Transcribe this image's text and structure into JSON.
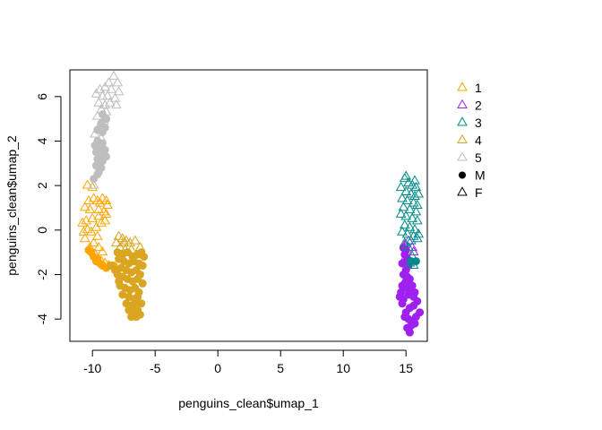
{
  "chart_data": {
    "type": "scatter",
    "xlabel": "penguins_clean$umap_1",
    "ylabel": "penguins_clean$umap_2",
    "xlim": [
      -11.8,
      16.7
    ],
    "ylim": [
      -5.0,
      7.2
    ],
    "x_ticks": [
      -10,
      -5,
      0,
      5,
      10,
      15
    ],
    "y_ticks": [
      -4,
      -2,
      0,
      2,
      4,
      6
    ],
    "grid": false,
    "legend_placement": "right",
    "legend": [
      {
        "label": "1",
        "kind": "color",
        "color": "#FFA500"
      },
      {
        "label": "2",
        "kind": "color",
        "color": "#A020F0"
      },
      {
        "label": "3",
        "kind": "color",
        "color": "#008B8B"
      },
      {
        "label": "4",
        "kind": "color",
        "color": "#DAA520"
      },
      {
        "label": "5",
        "kind": "color",
        "color": "#BEBEBE"
      },
      {
        "label": "M",
        "kind": "shape",
        "shape": "filled-circle"
      },
      {
        "label": "F",
        "kind": "shape",
        "shape": "open-triangle"
      }
    ],
    "series": [
      {
        "name": "1",
        "color": "#FFA500",
        "points": [
          [
            -10.4,
            2.0,
            "F"
          ],
          [
            -10.0,
            1.9,
            "F"
          ],
          [
            -9.9,
            1.4,
            "F"
          ],
          [
            -10.3,
            1.3,
            "F"
          ],
          [
            -10.6,
            1.0,
            "F"
          ],
          [
            -10.2,
            0.9,
            "F"
          ],
          [
            -9.6,
            1.3,
            "F"
          ],
          [
            -9.4,
            1.2,
            "F"
          ],
          [
            -9.2,
            1.4,
            "F"
          ],
          [
            -8.9,
            1.3,
            "F"
          ],
          [
            -8.8,
            1.1,
            "F"
          ],
          [
            -9.1,
            0.8,
            "F"
          ],
          [
            -9.5,
            0.6,
            "F"
          ],
          [
            -10.0,
            0.5,
            "F"
          ],
          [
            -10.5,
            0.4,
            "F"
          ],
          [
            -10.8,
            0.3,
            "F"
          ],
          [
            -10.4,
            0.0,
            "F"
          ],
          [
            -10.1,
            -0.1,
            "F"
          ],
          [
            -9.7,
            0.1,
            "F"
          ],
          [
            -9.3,
            0.3,
            "F"
          ],
          [
            -9.0,
            0.4,
            "F"
          ],
          [
            -9.6,
            -0.3,
            "F"
          ],
          [
            -9.9,
            -0.6,
            "F"
          ],
          [
            -10.2,
            -0.8,
            "F"
          ],
          [
            -10.6,
            -0.4,
            "F"
          ],
          [
            -10.7,
            -0.1,
            "F"
          ],
          [
            -9.5,
            -0.8,
            "F"
          ],
          [
            -9.2,
            -1.0,
            "F"
          ],
          [
            -9.8,
            -1.1,
            "F"
          ],
          [
            -9.3,
            -1.4,
            "F"
          ],
          [
            -9.0,
            -1.5,
            "F"
          ],
          [
            -8.7,
            -1.6,
            "F"
          ],
          [
            -9.5,
            0.9,
            "F"
          ],
          [
            -8.9,
            0.7,
            "F"
          ],
          [
            -10.3,
            -0.9,
            "M"
          ],
          [
            -10.1,
            -1.0,
            "M"
          ],
          [
            -9.9,
            -1.2,
            "M"
          ],
          [
            -9.7,
            -1.4,
            "M"
          ],
          [
            -9.6,
            -1.3,
            "M"
          ],
          [
            -9.4,
            -1.5,
            "M"
          ],
          [
            -9.2,
            -1.6,
            "M"
          ],
          [
            -8.9,
            -1.7,
            "M"
          ],
          [
            -8.6,
            -1.6,
            "M"
          ],
          [
            -8.3,
            -1.6,
            "M"
          ]
        ]
      },
      {
        "name": "2",
        "color": "#A020F0",
        "points": [
          [
            14.9,
            -0.7,
            "F"
          ],
          [
            15.2,
            -0.5,
            "F"
          ],
          [
            15.5,
            -0.8,
            "F"
          ],
          [
            15.0,
            -1.2,
            "F"
          ],
          [
            15.6,
            -1.0,
            "F"
          ],
          [
            15.3,
            -1.4,
            "F"
          ],
          [
            14.8,
            -0.8,
            "M"
          ],
          [
            15.0,
            -0.9,
            "M"
          ],
          [
            14.9,
            -1.1,
            "M"
          ],
          [
            15.1,
            -1.3,
            "M"
          ],
          [
            14.7,
            -1.5,
            "M"
          ],
          [
            15.2,
            -1.6,
            "M"
          ],
          [
            15.0,
            -1.8,
            "M"
          ],
          [
            14.8,
            -2.0,
            "M"
          ],
          [
            15.1,
            -2.1,
            "M"
          ],
          [
            15.3,
            -2.2,
            "M"
          ],
          [
            14.9,
            -2.4,
            "M"
          ],
          [
            14.7,
            -2.5,
            "M"
          ],
          [
            15.0,
            -2.6,
            "M"
          ],
          [
            15.4,
            -2.7,
            "M"
          ],
          [
            15.2,
            -2.9,
            "M"
          ],
          [
            14.6,
            -2.8,
            "M"
          ],
          [
            14.5,
            -3.0,
            "M"
          ],
          [
            14.8,
            -3.1,
            "M"
          ],
          [
            15.5,
            -2.5,
            "M"
          ],
          [
            15.7,
            -2.8,
            "M"
          ],
          [
            15.9,
            -3.2,
            "M"
          ],
          [
            15.6,
            -3.4,
            "M"
          ],
          [
            15.3,
            -3.5,
            "M"
          ],
          [
            15.0,
            -3.7,
            "M"
          ],
          [
            14.9,
            -3.9,
            "M"
          ],
          [
            15.2,
            -4.0,
            "M"
          ],
          [
            15.5,
            -4.1,
            "M"
          ],
          [
            15.8,
            -3.9,
            "M"
          ],
          [
            16.1,
            -3.7,
            "M"
          ],
          [
            15.4,
            -4.3,
            "M"
          ],
          [
            15.1,
            -4.4,
            "M"
          ],
          [
            15.3,
            -4.6,
            "M"
          ],
          [
            15.7,
            -4.2,
            "M"
          ],
          [
            14.7,
            -3.3,
            "M"
          ],
          [
            15.6,
            -3.0,
            "M"
          ],
          [
            15.0,
            -2.3,
            "M"
          ]
        ]
      },
      {
        "name": "3",
        "color": "#008B8B",
        "points": [
          [
            14.9,
            2.3,
            "F"
          ],
          [
            15.2,
            2.1,
            "F"
          ],
          [
            15.5,
            2.0,
            "F"
          ],
          [
            15.8,
            1.9,
            "F"
          ],
          [
            14.6,
            1.9,
            "F"
          ],
          [
            15.0,
            1.7,
            "F"
          ],
          [
            15.4,
            1.6,
            "F"
          ],
          [
            15.7,
            1.5,
            "F"
          ],
          [
            16.0,
            1.6,
            "F"
          ],
          [
            14.7,
            1.4,
            "F"
          ],
          [
            15.1,
            1.3,
            "F"
          ],
          [
            15.6,
            1.2,
            "F"
          ],
          [
            15.9,
            1.1,
            "F"
          ],
          [
            14.8,
            1.0,
            "F"
          ],
          [
            15.3,
            0.9,
            "F"
          ],
          [
            15.8,
            0.8,
            "F"
          ],
          [
            14.6,
            0.7,
            "F"
          ],
          [
            15.0,
            0.6,
            "F"
          ],
          [
            15.5,
            0.5,
            "F"
          ],
          [
            15.9,
            0.4,
            "F"
          ],
          [
            14.9,
            0.2,
            "F"
          ],
          [
            15.3,
            0.1,
            "F"
          ],
          [
            15.7,
            0.0,
            "F"
          ],
          [
            14.7,
            -0.1,
            "F"
          ],
          [
            15.1,
            -0.2,
            "F"
          ],
          [
            15.6,
            -0.3,
            "F"
          ],
          [
            16.0,
            -0.2,
            "F"
          ],
          [
            15.9,
            -0.4,
            "F"
          ],
          [
            15.4,
            -0.5,
            "F"
          ],
          [
            14.9,
            -0.6,
            "F"
          ],
          [
            15.2,
            -0.8,
            "F"
          ],
          [
            15.5,
            -1.2,
            "F"
          ],
          [
            15.3,
            -1.5,
            "F"
          ],
          [
            15.6,
            -1.6,
            "F"
          ],
          [
            15.0,
            2.4,
            "F"
          ],
          [
            15.7,
            2.2,
            "F"
          ],
          [
            15.8,
            -1.4,
            "M"
          ],
          [
            15.4,
            -1.4,
            "M"
          ]
        ]
      },
      {
        "name": "4",
        "color": "#DAA520",
        "points": [
          [
            -7.9,
            -0.3,
            "F"
          ],
          [
            -7.6,
            -0.4,
            "F"
          ],
          [
            -7.3,
            -0.5,
            "F"
          ],
          [
            -7.0,
            -0.6,
            "F"
          ],
          [
            -6.6,
            -0.5,
            "F"
          ],
          [
            -8.1,
            -0.6,
            "F"
          ],
          [
            -7.8,
            -0.8,
            "F"
          ],
          [
            -7.4,
            -0.9,
            "F"
          ],
          [
            -6.9,
            -0.9,
            "F"
          ],
          [
            -6.2,
            -0.8,
            "F"
          ],
          [
            -7.5,
            -0.6,
            "F"
          ],
          [
            -8.0,
            -1.0,
            "M"
          ],
          [
            -7.6,
            -1.1,
            "M"
          ],
          [
            -7.2,
            -1.0,
            "M"
          ],
          [
            -6.8,
            -1.2,
            "M"
          ],
          [
            -6.4,
            -1.1,
            "M"
          ],
          [
            -6.1,
            -1.0,
            "M"
          ],
          [
            -5.9,
            -1.2,
            "M"
          ],
          [
            -7.9,
            -1.3,
            "M"
          ],
          [
            -7.5,
            -1.4,
            "M"
          ],
          [
            -7.1,
            -1.5,
            "M"
          ],
          [
            -6.7,
            -1.4,
            "M"
          ],
          [
            -6.3,
            -1.5,
            "M"
          ],
          [
            -6.0,
            -1.6,
            "M"
          ],
          [
            -7.7,
            -1.7,
            "M"
          ],
          [
            -7.3,
            -1.8,
            "M"
          ],
          [
            -6.9,
            -1.9,
            "M"
          ],
          [
            -6.5,
            -1.8,
            "M"
          ],
          [
            -6.2,
            -2.0,
            "M"
          ],
          [
            -8.0,
            -2.0,
            "M"
          ],
          [
            -7.6,
            -2.1,
            "M"
          ],
          [
            -7.2,
            -2.2,
            "M"
          ],
          [
            -6.8,
            -2.3,
            "M"
          ],
          [
            -6.4,
            -2.2,
            "M"
          ],
          [
            -6.0,
            -2.4,
            "M"
          ],
          [
            -7.8,
            -2.5,
            "M"
          ],
          [
            -7.4,
            -2.6,
            "M"
          ],
          [
            -7.0,
            -2.7,
            "M"
          ],
          [
            -6.6,
            -2.6,
            "M"
          ],
          [
            -6.3,
            -2.8,
            "M"
          ],
          [
            -7.6,
            -2.9,
            "M"
          ],
          [
            -7.1,
            -3.0,
            "M"
          ],
          [
            -6.7,
            -3.1,
            "M"
          ],
          [
            -6.4,
            -3.0,
            "M"
          ],
          [
            -7.3,
            -3.3,
            "M"
          ],
          [
            -6.9,
            -3.4,
            "M"
          ],
          [
            -6.5,
            -3.3,
            "M"
          ],
          [
            -7.1,
            -3.6,
            "M"
          ],
          [
            -6.7,
            -3.7,
            "M"
          ],
          [
            -6.4,
            -3.6,
            "M"
          ],
          [
            -6.9,
            -3.9,
            "M"
          ],
          [
            -6.5,
            -3.9,
            "M"
          ],
          [
            -6.2,
            -3.8,
            "M"
          ],
          [
            -8.5,
            -1.6,
            "M"
          ],
          [
            -8.2,
            -1.8,
            "M"
          ],
          [
            -7.9,
            -2.3,
            "M"
          ],
          [
            -6.1,
            -3.3,
            "M"
          ]
        ]
      },
      {
        "name": "5",
        "color": "#BEBEBE",
        "points": [
          [
            -8.3,
            6.9,
            "F"
          ],
          [
            -8.7,
            6.6,
            "F"
          ],
          [
            -8.0,
            6.6,
            "F"
          ],
          [
            -9.4,
            6.3,
            "F"
          ],
          [
            -9.0,
            6.4,
            "F"
          ],
          [
            -8.5,
            6.3,
            "F"
          ],
          [
            -7.9,
            6.2,
            "F"
          ],
          [
            -9.7,
            6.1,
            "F"
          ],
          [
            -9.2,
            6.0,
            "F"
          ],
          [
            -8.8,
            6.0,
            "F"
          ],
          [
            -8.2,
            5.9,
            "F"
          ],
          [
            -9.5,
            5.7,
            "F"
          ],
          [
            -9.0,
            5.6,
            "F"
          ],
          [
            -8.6,
            5.7,
            "F"
          ],
          [
            -8.1,
            5.6,
            "F"
          ],
          [
            -9.3,
            5.4,
            "F"
          ],
          [
            -8.9,
            5.3,
            "F"
          ],
          [
            -9.6,
            5.1,
            "F"
          ],
          [
            -9.1,
            4.9,
            "F"
          ],
          [
            -9.4,
            4.7,
            "F"
          ],
          [
            -9.8,
            4.3,
            "F"
          ],
          [
            -9.3,
            4.1,
            "F"
          ],
          [
            -9.9,
            2.0,
            "F"
          ],
          [
            -9.2,
            5.2,
            "M"
          ],
          [
            -8.9,
            5.0,
            "M"
          ],
          [
            -9.3,
            4.8,
            "M"
          ],
          [
            -9.0,
            4.6,
            "M"
          ],
          [
            -9.6,
            4.5,
            "M"
          ],
          [
            -9.2,
            4.4,
            "M"
          ],
          [
            -9.6,
            4.0,
            "M"
          ],
          [
            -9.2,
            3.9,
            "M"
          ],
          [
            -9.8,
            3.8,
            "M"
          ],
          [
            -9.4,
            3.7,
            "M"
          ],
          [
            -9.0,
            3.6,
            "M"
          ],
          [
            -9.7,
            3.5,
            "M"
          ],
          [
            -9.3,
            3.4,
            "M"
          ],
          [
            -8.9,
            3.3,
            "M"
          ],
          [
            -9.6,
            3.2,
            "M"
          ],
          [
            -9.2,
            3.1,
            "M"
          ],
          [
            -9.7,
            2.9,
            "M"
          ],
          [
            -9.3,
            2.8,
            "M"
          ],
          [
            -9.5,
            2.6,
            "M"
          ],
          [
            -9.9,
            2.3,
            "M"
          ],
          [
            -9.6,
            2.5,
            "M"
          ]
        ]
      }
    ]
  }
}
